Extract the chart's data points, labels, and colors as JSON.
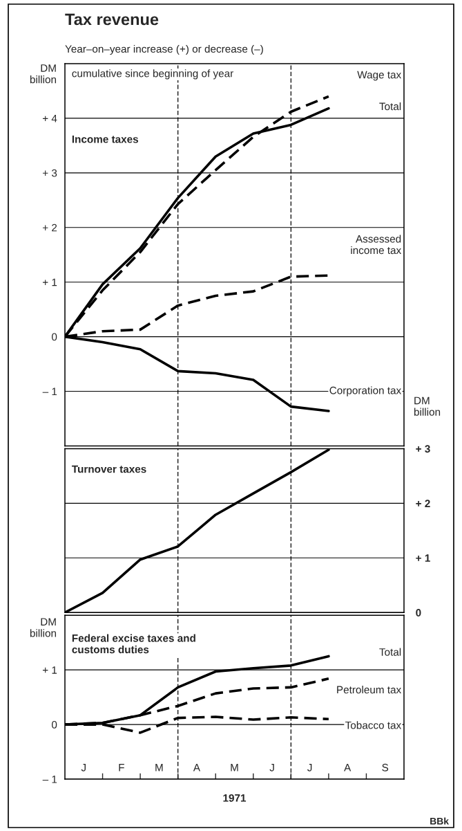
{
  "chart_data": [
    {
      "type": "line",
      "title": "Tax revenue",
      "subtitle": "Year–on–year increase (+) or decrease (–)",
      "ylabel": "DM\nbillion",
      "categories": [
        null,
        null,
        null,
        null,
        null,
        null,
        null,
        null,
        null,
        null
      ],
      "series": [
        {
          "name": "Wage tax",
          "color": "#000000",
          "line_style": "dashed",
          "values": [
            0,
            0.85,
            1.55,
            2.43,
            3.05,
            3.66,
            4.12,
            4.4,
            null,
            null
          ]
        },
        {
          "name": "Total",
          "color": "#000000",
          "line_style": "solid",
          "values": [
            0,
            0.96,
            1.62,
            2.54,
            3.3,
            3.72,
            3.88,
            4.18,
            null,
            null
          ]
        },
        {
          "name": "Assessed\nincome tax",
          "color": "#000000",
          "line_style": "dashed",
          "values": [
            0,
            0.1,
            0.13,
            0.57,
            0.75,
            0.83,
            1.1,
            1.12,
            null,
            null
          ]
        },
        {
          "name": "Corporation tax",
          "color": "#000000",
          "line_style": "solid",
          "values": [
            0,
            -0.1,
            -0.23,
            -0.63,
            -0.67,
            -0.79,
            -1.28,
            -1.36,
            null,
            null
          ]
        }
      ],
      "ylim": [
        -2,
        5
      ],
      "yticks": [
        {
          "value": 4,
          "label": "+ 4"
        },
        {
          "value": 3,
          "label": "+ 3"
        },
        {
          "value": 2,
          "label": "+ 2"
        },
        {
          "value": 1,
          "label": "+ 1"
        },
        0,
        {
          "value": -1,
          "label": "– 1"
        }
      ],
      "grid": "y",
      "annotations": [
        "cumulative since beginning of year",
        "Income taxes"
      ]
    },
    {
      "type": "line",
      "ylabel": "DM\nbillion",
      "categories": [
        null,
        null,
        null,
        null,
        null,
        null,
        null,
        null,
        null,
        null
      ],
      "series": [
        {
          "color": "#000000",
          "line_style": "solid",
          "values": [
            0,
            0.36,
            0.97,
            1.21,
            1.79,
            2.18,
            2.57,
            2.98,
            null,
            null
          ]
        }
      ],
      "ylim": [
        0,
        3
      ],
      "yticks": [
        {
          "value": 3,
          "label": "+ 3"
        },
        {
          "value": 2,
          "label": "+ 2"
        },
        {
          "value": 1,
          "label": "+ 1"
        },
        0
      ],
      "grid": "y",
      "annotations": [
        "Turnover taxes"
      ]
    },
    {
      "type": "line",
      "ylabel": "DM\nbillion",
      "xlabel": "1971",
      "categories": [
        null,
        null,
        null,
        null,
        null,
        null,
        null,
        null,
        null,
        null
      ],
      "series": [
        {
          "name": "Total",
          "color": "#000000",
          "line_style": "solid",
          "values": [
            0,
            0.03,
            0.17,
            0.68,
            0.97,
            1.03,
            1.08,
            1.25,
            null,
            null
          ]
        },
        {
          "name": "Petroleum tax",
          "color": "#000000",
          "line_style": "dashed",
          "values": [
            0,
            0.03,
            0.17,
            0.34,
            0.57,
            0.66,
            0.68,
            0.84,
            null,
            null
          ]
        },
        {
          "name": "Tobacco tax",
          "color": "#000000",
          "line_style": "dashed",
          "values": [
            0,
            0,
            -0.15,
            0.12,
            0.14,
            0.09,
            0.13,
            0.1,
            null,
            null
          ]
        }
      ],
      "ylim": [
        -1,
        2
      ],
      "yticks": [
        {
          "value": 1,
          "label": "+ 1"
        },
        0,
        {
          "value": -1,
          "label": "– 1"
        }
      ],
      "grid": "y",
      "annotations": [
        "Federal excise taxes and\ncustoms duties",
        "BBk",
        "J",
        "F",
        "M",
        "A",
        "M",
        "J",
        "J",
        "A",
        "S"
      ]
    }
  ]
}
